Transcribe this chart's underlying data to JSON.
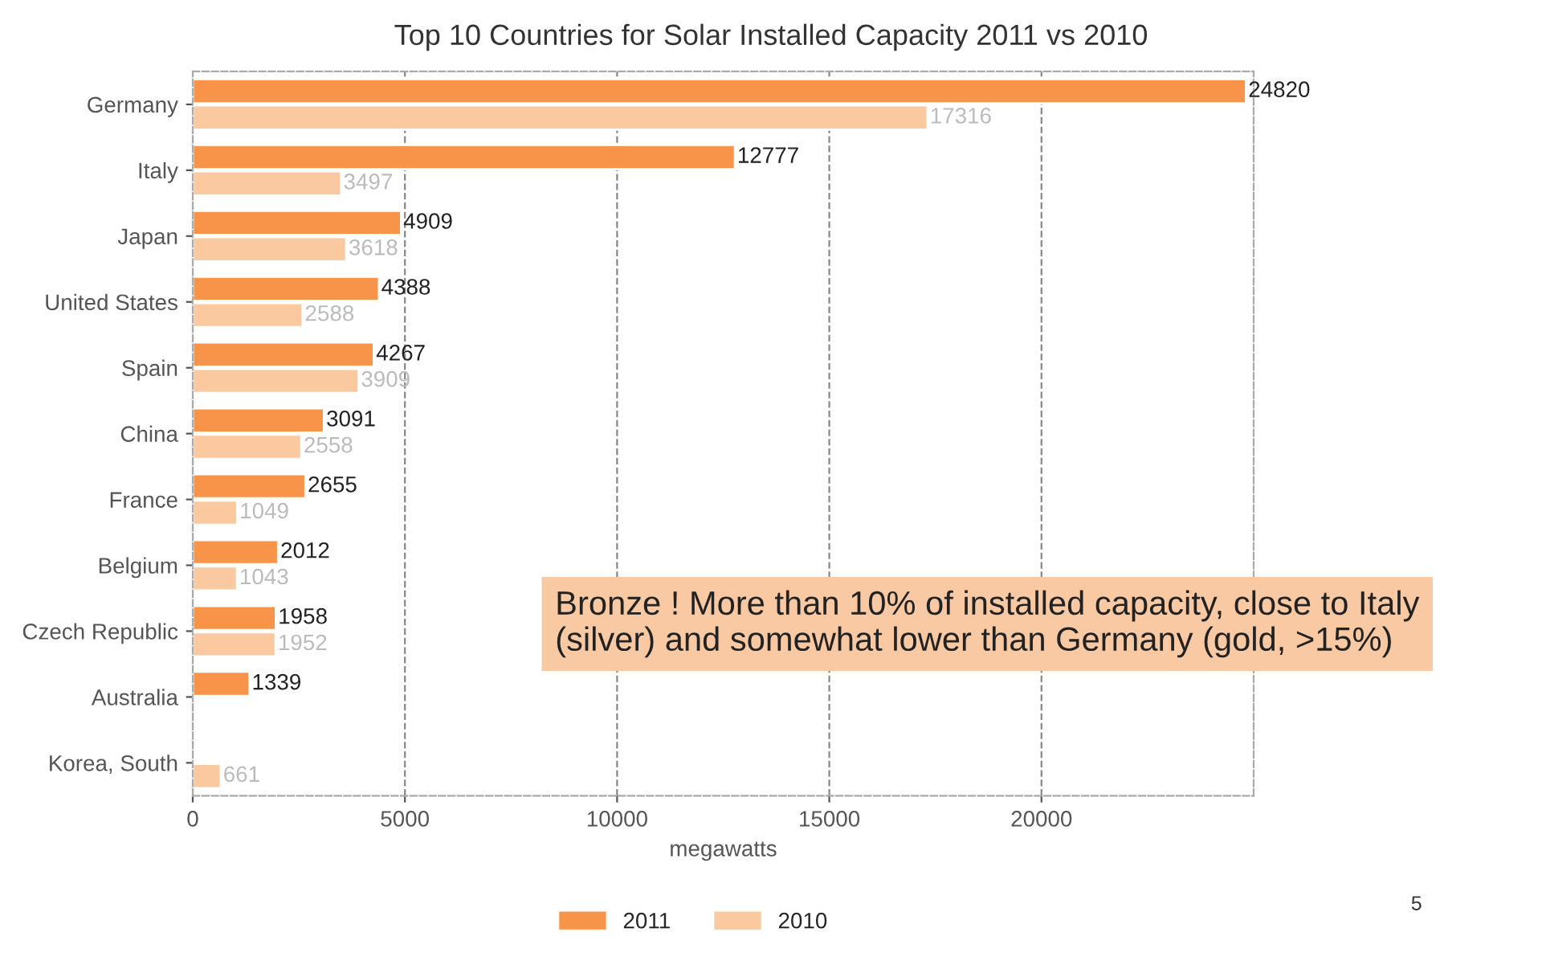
{
  "chart_data": {
    "type": "bar",
    "orientation": "horizontal",
    "title": "Top 10 Countries for Solar Installed Capacity 2011 vs 2010",
    "xlabel": "megawatts",
    "categories": [
      "Germany",
      "Italy",
      "Japan",
      "United States",
      "Spain",
      "China",
      "France",
      "Belgium",
      "Czech Republic",
      "Australia",
      "Korea, South"
    ],
    "series": [
      {
        "name": "2011",
        "color": "#f7944a",
        "values": [
          24820,
          12777,
          4909,
          4388,
          4267,
          3091,
          2655,
          2012,
          1958,
          1339,
          null
        ]
      },
      {
        "name": "2010",
        "color": "#fbc9a0",
        "values": [
          17316,
          3497,
          3618,
          2588,
          3909,
          2558,
          1049,
          1043,
          1952,
          null,
          661
        ]
      }
    ],
    "xlim": [
      0,
      25000
    ],
    "xticks": [
      0,
      5000,
      10000,
      15000,
      20000
    ],
    "grid": "x",
    "legend": "bottom",
    "data_labels": true,
    "annotations": [
      "Bronze ! More than 10% of installed capacity, close to Italy (silver) and somewhat lower than Germany (gold, >15%)",
      "5"
    ]
  }
}
